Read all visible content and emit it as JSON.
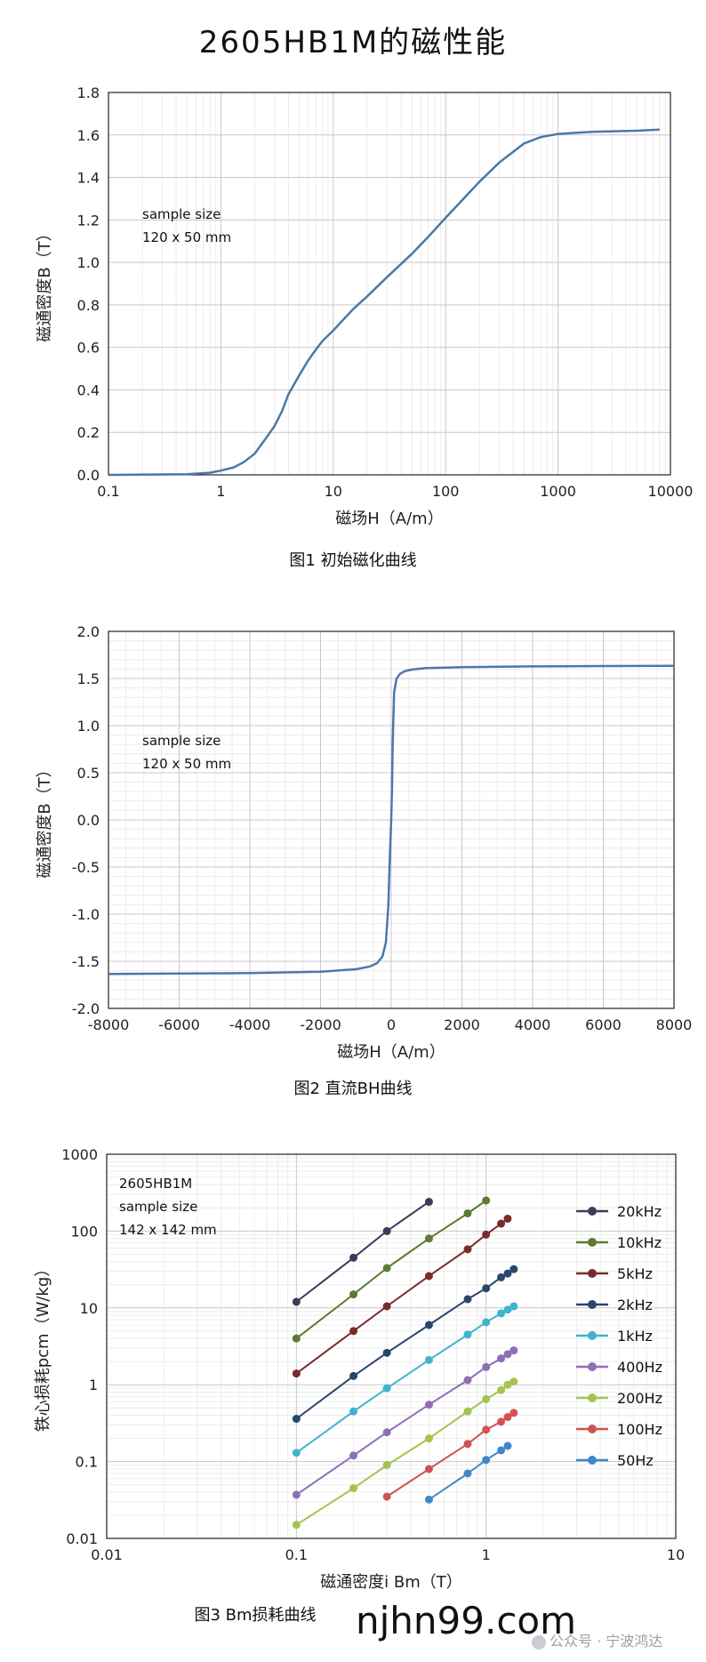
{
  "page": {
    "title": "2605HB1M的磁性能"
  },
  "chart_data": [
    {
      "type": "line",
      "x_scale": "log",
      "xlim": [
        0.1,
        10000
      ],
      "ylim": [
        0,
        1.8
      ],
      "x_ticks": [
        0.1,
        1,
        10,
        100,
        1000,
        10000
      ],
      "x_tick_labels": [
        "0.1",
        "1",
        "10",
        "100",
        "1000",
        "10000"
      ],
      "y_ticks": [
        0,
        0.2,
        0.4,
        0.6,
        0.8,
        1.0,
        1.2,
        1.4,
        1.6,
        1.8
      ],
      "y_tick_labels": [
        "0.0",
        "0.2",
        "0.4",
        "0.6",
        "0.8",
        "1.0",
        "1.2",
        "1.4",
        "1.6",
        "1.8"
      ],
      "xlabel": "磁场H（A/m）",
      "ylabel": "磁通密度B（T）",
      "caption": "图1 初始磁化曲线",
      "annotation": [
        "sample size",
        "120 x 50 mm"
      ],
      "grid": true,
      "color": "#4a78a8",
      "series": [
        {
          "x": [
            0.1,
            0.5,
            0.8,
            1.0,
            1.3,
            1.6,
            2.0,
            2.5,
            3.0,
            3.5,
            4.0,
            5.0,
            6.0,
            7.0,
            8.0,
            10,
            15,
            20,
            30,
            50,
            70,
            100,
            150,
            200,
            300,
            500,
            700,
            1000,
            2000,
            5000,
            8000
          ],
          "y": [
            0.0,
            0.003,
            0.01,
            0.02,
            0.035,
            0.06,
            0.1,
            0.17,
            0.23,
            0.3,
            0.38,
            0.47,
            0.54,
            0.59,
            0.63,
            0.68,
            0.78,
            0.84,
            0.93,
            1.04,
            1.12,
            1.21,
            1.31,
            1.38,
            1.47,
            1.56,
            1.59,
            1.605,
            1.615,
            1.62,
            1.625
          ]
        }
      ]
    },
    {
      "type": "line",
      "xlim": [
        -8000,
        8000
      ],
      "ylim": [
        -2.0,
        2.0
      ],
      "x_ticks": [
        -8000,
        -6000,
        -4000,
        -2000,
        0,
        2000,
        4000,
        6000,
        8000
      ],
      "x_tick_labels": [
        "-8000",
        "-6000",
        "-4000",
        "-2000",
        "0",
        "2000",
        "4000",
        "6000",
        "8000"
      ],
      "y_ticks": [
        -2.0,
        -1.5,
        -1.0,
        -0.5,
        0.0,
        0.5,
        1.0,
        1.5,
        2.0
      ],
      "y_tick_labels": [
        "-2.0",
        "-1.5",
        "-1.0",
        "-0.5",
        "0.0",
        "0.5",
        "1.0",
        "1.5",
        "2.0"
      ],
      "xlabel": "磁场H（A/m）",
      "ylabel": "磁通密度B（T）",
      "caption": "图2 直流BH曲线",
      "annotation": [
        "sample size",
        "120 x 50 mm"
      ],
      "grid": true,
      "color": "#4a78a8",
      "series": [
        {
          "x": [
            -8000,
            -6000,
            -4000,
            -2000,
            -1000,
            -600,
            -400,
            -250,
            -150,
            -80,
            -40,
            0,
            20,
            40,
            80,
            150,
            250,
            400,
            600,
            1000,
            2000,
            4000,
            6000,
            8000
          ],
          "y": [
            -1.635,
            -1.63,
            -1.625,
            -1.61,
            -1.585,
            -1.555,
            -1.52,
            -1.45,
            -1.3,
            -0.9,
            -0.4,
            0.0,
            0.3,
            0.8,
            1.35,
            1.5,
            1.55,
            1.58,
            1.595,
            1.61,
            1.62,
            1.628,
            1.632,
            1.635
          ]
        }
      ]
    },
    {
      "type": "line",
      "x_scale": "log",
      "y_scale": "log",
      "xlim": [
        0.01,
        10
      ],
      "ylim": [
        0.01,
        1000
      ],
      "x_ticks": [
        0.01,
        0.1,
        1,
        10
      ],
      "x_tick_labels": [
        "0.01",
        "0.1",
        "1",
        "10"
      ],
      "y_ticks": [
        0.01,
        0.1,
        1,
        10,
        100,
        1000
      ],
      "y_tick_labels": [
        "0.01",
        "0.1",
        "1",
        "10",
        "100",
        "1000"
      ],
      "xlabel": "磁通密度i Bm（T）",
      "ylabel": "铁心损耗pcm（W/kg）",
      "caption": "图3 Bm损耗曲线",
      "annotation": [
        "2605HB1M",
        "sample size",
        "142 x 142 mm"
      ],
      "grid": true,
      "legend": "right",
      "series": [
        {
          "name": "20kHz",
          "color": "#3d3a5c",
          "x": [
            0.1,
            0.2,
            0.3,
            0.5
          ],
          "y": [
            12,
            45,
            100,
            240
          ]
        },
        {
          "name": "10kHz",
          "color": "#5d7a32",
          "x": [
            0.1,
            0.2,
            0.3,
            0.5,
            0.8,
            1.0
          ],
          "y": [
            4,
            15,
            33,
            80,
            170,
            250
          ]
        },
        {
          "name": "5kHz",
          "color": "#7a2a2e",
          "x": [
            0.1,
            0.2,
            0.3,
            0.5,
            0.8,
            1.0,
            1.2,
            1.3
          ],
          "y": [
            1.4,
            5,
            10.5,
            26,
            58,
            90,
            125,
            145
          ]
        },
        {
          "name": "2kHz",
          "color": "#29456b",
          "x": [
            0.1,
            0.2,
            0.3,
            0.5,
            0.8,
            1.0,
            1.2,
            1.3,
            1.4
          ],
          "y": [
            0.36,
            1.3,
            2.6,
            6,
            13,
            18,
            25,
            28,
            32
          ]
        },
        {
          "name": "1kHz",
          "color": "#3fb3cf",
          "x": [
            0.1,
            0.2,
            0.3,
            0.5,
            0.8,
            1.0,
            1.2,
            1.3,
            1.4
          ],
          "y": [
            0.13,
            0.45,
            0.9,
            2.1,
            4.5,
            6.5,
            8.5,
            9.5,
            10.5
          ]
        },
        {
          "name": "400Hz",
          "color": "#8e6fb5",
          "x": [
            0.1,
            0.2,
            0.3,
            0.5,
            0.8,
            1.0,
            1.2,
            1.3,
            1.4
          ],
          "y": [
            0.037,
            0.12,
            0.24,
            0.55,
            1.15,
            1.7,
            2.2,
            2.5,
            2.8
          ]
        },
        {
          "name": "200Hz",
          "color": "#a3c44f",
          "x": [
            0.1,
            0.2,
            0.3,
            0.5,
            0.8,
            1.0,
            1.2,
            1.3,
            1.4
          ],
          "y": [
            0.015,
            0.045,
            0.09,
            0.2,
            0.45,
            0.65,
            0.85,
            1.0,
            1.1
          ]
        },
        {
          "name": "100Hz",
          "color": "#d15252",
          "x": [
            0.3,
            0.5,
            0.8,
            1.0,
            1.2,
            1.3,
            1.4
          ],
          "y": [
            0.035,
            0.08,
            0.17,
            0.26,
            0.33,
            0.38,
            0.43
          ]
        },
        {
          "name": "50Hz",
          "color": "#3f88c7",
          "x": [
            0.5,
            0.8,
            1.0,
            1.2,
            1.3
          ],
          "y": [
            0.032,
            0.07,
            0.105,
            0.14,
            0.16
          ]
        }
      ]
    }
  ],
  "watermark": {
    "url": "njhn99.com",
    "wechat": "公众号 · 宁波鸿达"
  }
}
